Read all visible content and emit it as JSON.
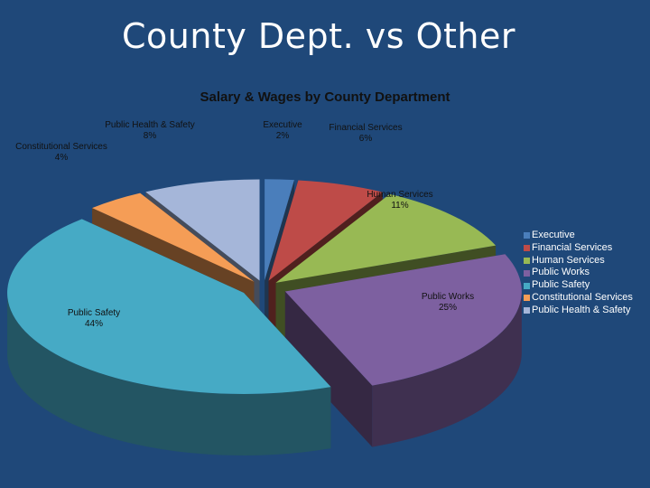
{
  "slide": {
    "title": "County Dept. vs Other"
  },
  "chart_data": {
    "type": "pie",
    "title": "Salary & Wages by County Department",
    "categories": [
      "Executive",
      "Financial Services",
      "Human Services",
      "Public Works",
      "Public Safety",
      "Constitutional Services",
      "Public Health & Safety"
    ],
    "values": [
      2,
      6,
      11,
      25,
      44,
      4,
      8
    ],
    "data_labels": [
      "2%",
      "6%",
      "11%",
      "25%",
      "44%",
      "4%",
      "8%"
    ],
    "colors": [
      "#4a7ebb",
      "#be4b48",
      "#98b954",
      "#7d60a0",
      "#46aac5",
      "#f59d56",
      "#a5b6d9"
    ],
    "style": "3d-exploded",
    "legend_position": "right"
  }
}
